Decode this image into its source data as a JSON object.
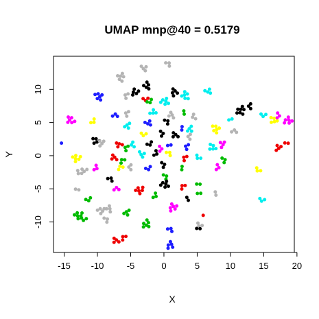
{
  "chart_data": {
    "type": "scatter",
    "title": "UMAP mnp@40 = 0.5179",
    "xlabel": "X",
    "ylabel": "Y",
    "xlim": [
      -16.6,
      19.6
    ],
    "ylim": [
      -14.6,
      15.0
    ],
    "x_ticks": [
      -15,
      -10,
      -5,
      0,
      5,
      10,
      15,
      20
    ],
    "y_ticks": [
      -10,
      -5,
      0,
      5,
      10
    ],
    "grid": false,
    "legend": "none",
    "point_colors": {
      "red": "#ee0000",
      "green": "#00bb00",
      "blue": "#1d1dff",
      "cyan": "#00eeee",
      "magenta": "#ff00ff",
      "yellow": "#ffff00",
      "gray": "#b4b4b4",
      "black": "#000000"
    },
    "clusters": [
      {
        "color": "gray",
        "x": 0.6,
        "y": 13.9,
        "n": 3
      },
      {
        "color": "gray",
        "x": -3.0,
        "y": 13.3,
        "n": 4
      },
      {
        "color": "gray",
        "x": -6.5,
        "y": 11.8,
        "n": 6
      },
      {
        "color": "black",
        "x": -2.6,
        "y": 10.5,
        "n": 5
      },
      {
        "color": "blue",
        "x": -9.8,
        "y": 9.0,
        "n": 6
      },
      {
        "color": "gray",
        "x": -5.7,
        "y": 9.0,
        "n": 3
      },
      {
        "color": "black",
        "x": -4.4,
        "y": 9.6,
        "n": 5
      },
      {
        "color": "red",
        "x": -2.7,
        "y": 8.5,
        "n": 3
      },
      {
        "color": "green",
        "x": -2.1,
        "y": 8.2,
        "n": 3
      },
      {
        "color": "cyan",
        "x": 0.1,
        "y": 8.2,
        "n": 6
      },
      {
        "color": "black",
        "x": 1.6,
        "y": 9.6,
        "n": 5
      },
      {
        "color": "cyan",
        "x": 3.2,
        "y": 9.0,
        "n": 6
      },
      {
        "color": "cyan",
        "x": 6.6,
        "y": 9.8,
        "n": 4
      },
      {
        "color": "cyan",
        "x": -1.7,
        "y": 6.6,
        "n": 4
      },
      {
        "color": "green",
        "x": 3.1,
        "y": 6.6,
        "n": 2
      },
      {
        "color": "blue",
        "x": -7.4,
        "y": 6.1,
        "n": 3
      },
      {
        "color": "gray",
        "x": -5.6,
        "y": 6.3,
        "n": 3
      },
      {
        "color": "magenta",
        "x": -14.0,
        "y": 5.3,
        "n": 6
      },
      {
        "color": "yellow",
        "x": -10.6,
        "y": 5.2,
        "n": 3
      },
      {
        "color": "cyan",
        "x": -5.4,
        "y": 4.5,
        "n": 4
      },
      {
        "color": "blue",
        "x": -2.4,
        "y": 5.0,
        "n": 4
      },
      {
        "color": "gray",
        "x": 1.1,
        "y": 6.0,
        "n": 4
      },
      {
        "color": "black",
        "x": 0.4,
        "y": 5.2,
        "n": 3
      },
      {
        "color": "gray",
        "x": 4.5,
        "y": 5.8,
        "n": 3
      },
      {
        "color": "cyan",
        "x": 4.0,
        "y": 4.0,
        "n": 4
      },
      {
        "color": "blue",
        "x": 2.8,
        "y": 4.2,
        "n": 2
      },
      {
        "color": "black",
        "x": 11.6,
        "y": 6.8,
        "n": 7
      },
      {
        "color": "black",
        "x": 12.9,
        "y": 7.4,
        "n": 3
      },
      {
        "color": "cyan",
        "x": 15.0,
        "y": 6.1,
        "n": 3
      },
      {
        "color": "magenta",
        "x": 17.2,
        "y": 6.1,
        "n": 3
      },
      {
        "color": "magenta",
        "x": 18.6,
        "y": 5.3,
        "n": 6
      },
      {
        "color": "yellow",
        "x": 16.5,
        "y": 5.3,
        "n": 5
      },
      {
        "color": "yellow",
        "x": 7.8,
        "y": 4.1,
        "n": 6
      },
      {
        "color": "gray",
        "x": 10.5,
        "y": 3.7,
        "n": 3
      },
      {
        "color": "cyan",
        "x": 10.1,
        "y": 5.4,
        "n": 2
      },
      {
        "color": "yellow",
        "x": -3.0,
        "y": 3.2,
        "n": 3
      },
      {
        "color": "black",
        "x": -0.3,
        "y": 3.4,
        "n": 3
      },
      {
        "color": "black",
        "x": 1.7,
        "y": 3.0,
        "n": 4
      },
      {
        "color": "gray",
        "x": 3.8,
        "y": 2.8,
        "n": 3
      },
      {
        "color": "black",
        "x": -10.2,
        "y": 2.2,
        "n": 5
      },
      {
        "color": "gray",
        "x": -9.5,
        "y": 1.9,
        "n": 4
      },
      {
        "color": "blue",
        "x": -15.4,
        "y": 1.9,
        "n": 1
      },
      {
        "color": "red",
        "x": -6.7,
        "y": 1.6,
        "n": 4
      },
      {
        "color": "green",
        "x": -5.7,
        "y": 1.1,
        "n": 3
      },
      {
        "color": "cyan",
        "x": -4.7,
        "y": 1.6,
        "n": 3
      },
      {
        "color": "black",
        "x": -2.1,
        "y": 1.8,
        "n": 3
      },
      {
        "color": "magenta",
        "x": -0.5,
        "y": 1.1,
        "n": 3
      },
      {
        "color": "blue",
        "x": 0.9,
        "y": 1.5,
        "n": 2
      },
      {
        "color": "blue",
        "x": 3.4,
        "y": 1.3,
        "n": 3
      },
      {
        "color": "cyan",
        "x": 7.3,
        "y": 1.2,
        "n": 5
      },
      {
        "color": "magenta",
        "x": 8.7,
        "y": 1.7,
        "n": 4
      },
      {
        "color": "yellow",
        "x": -13.1,
        "y": -0.4,
        "n": 6
      },
      {
        "color": "red",
        "x": -7.5,
        "y": -0.4,
        "n": 4
      },
      {
        "color": "green",
        "x": -6.3,
        "y": -0.8,
        "n": 3
      },
      {
        "color": "cyan",
        "x": -3.3,
        "y": 0.3,
        "n": 4
      },
      {
        "color": "black",
        "x": -1.2,
        "y": 0.4,
        "n": 3
      },
      {
        "color": "black",
        "x": -0.1,
        "y": -1.3,
        "n": 3
      },
      {
        "color": "yellow",
        "x": 0.7,
        "y": 0.4,
        "n": 3
      },
      {
        "color": "red",
        "x": 3.1,
        "y": -0.4,
        "n": 3
      },
      {
        "color": "cyan",
        "x": 5.2,
        "y": -0.3,
        "n": 3
      },
      {
        "color": "green",
        "x": 9.0,
        "y": -0.6,
        "n": 3
      },
      {
        "color": "red",
        "x": 17.1,
        "y": 1.2,
        "n": 4
      },
      {
        "color": "red",
        "x": 18.5,
        "y": 1.8,
        "n": 2
      },
      {
        "color": "gray",
        "x": -11.9,
        "y": -2.2,
        "n": 3
      },
      {
        "color": "magenta",
        "x": -10.2,
        "y": -1.8,
        "n": 3
      },
      {
        "color": "yellow",
        "x": -6.6,
        "y": -1.8,
        "n": 3
      },
      {
        "color": "gray",
        "x": -5.1,
        "y": -1.8,
        "n": 3
      },
      {
        "color": "blue",
        "x": -2.3,
        "y": -1.9,
        "n": 3
      },
      {
        "color": "green",
        "x": 2.8,
        "y": -1.8,
        "n": 2
      },
      {
        "color": "magenta",
        "x": 8.1,
        "y": -1.7,
        "n": 3
      },
      {
        "color": "yellow",
        "x": 14.2,
        "y": -2.2,
        "n": 3
      },
      {
        "color": "gray",
        "x": -12.7,
        "y": -2.6,
        "n": 3
      },
      {
        "color": "black",
        "x": -8.1,
        "y": -3.5,
        "n": 3
      },
      {
        "color": "green",
        "x": 0.2,
        "y": -3.1,
        "n": 3
      },
      {
        "color": "black",
        "x": 0.1,
        "y": -4.3,
        "n": 6
      },
      {
        "color": "red",
        "x": 2.8,
        "y": -4.7,
        "n": 3
      },
      {
        "color": "green",
        "x": 5.1,
        "y": -4.2,
        "n": 2
      },
      {
        "color": "red",
        "x": -3.6,
        "y": -5.2,
        "n": 6
      },
      {
        "color": "magenta",
        "x": -7.2,
        "y": -5.0,
        "n": 3
      },
      {
        "color": "gray",
        "x": -13.1,
        "y": -5.0,
        "n": 2
      },
      {
        "color": "green",
        "x": -11.3,
        "y": -6.6,
        "n": 3
      },
      {
        "color": "black",
        "x": 3.6,
        "y": -6.4,
        "n": 2
      },
      {
        "color": "green",
        "x": 5.2,
        "y": -5.6,
        "n": 2
      },
      {
        "color": "gray",
        "x": 7.7,
        "y": -5.8,
        "n": 2
      },
      {
        "color": "cyan",
        "x": 14.8,
        "y": -6.7,
        "n": 3
      },
      {
        "color": "green",
        "x": -1.3,
        "y": -6.0,
        "n": 3
      },
      {
        "color": "magenta",
        "x": 1.3,
        "y": -7.8,
        "n": 6
      },
      {
        "color": "gray",
        "x": -9.4,
        "y": -8.3,
        "n": 5
      },
      {
        "color": "gray",
        "x": -8.3,
        "y": -8.1,
        "n": 4
      },
      {
        "color": "green",
        "x": -12.8,
        "y": -9.0,
        "n": 6
      },
      {
        "color": "green",
        "x": -5.5,
        "y": -8.6,
        "n": 4
      },
      {
        "color": "green",
        "x": -12.0,
        "y": -9.6,
        "n": 3
      },
      {
        "color": "gray",
        "x": -8.7,
        "y": -9.6,
        "n": 3
      },
      {
        "color": "green",
        "x": -2.6,
        "y": -10.3,
        "n": 6
      },
      {
        "color": "red",
        "x": 5.9,
        "y": -9.0,
        "n": 1
      },
      {
        "color": "gray",
        "x": 5.4,
        "y": -10.5,
        "n": 3
      },
      {
        "color": "black",
        "x": 5.1,
        "y": -10.9,
        "n": 2
      },
      {
        "color": "blue",
        "x": 0.9,
        "y": -11.1,
        "n": 3
      },
      {
        "color": "red",
        "x": -7.2,
        "y": -12.9,
        "n": 4
      },
      {
        "color": "red",
        "x": -6.1,
        "y": -12.4,
        "n": 3
      },
      {
        "color": "blue",
        "x": 1.0,
        "y": -13.5,
        "n": 5
      }
    ]
  }
}
